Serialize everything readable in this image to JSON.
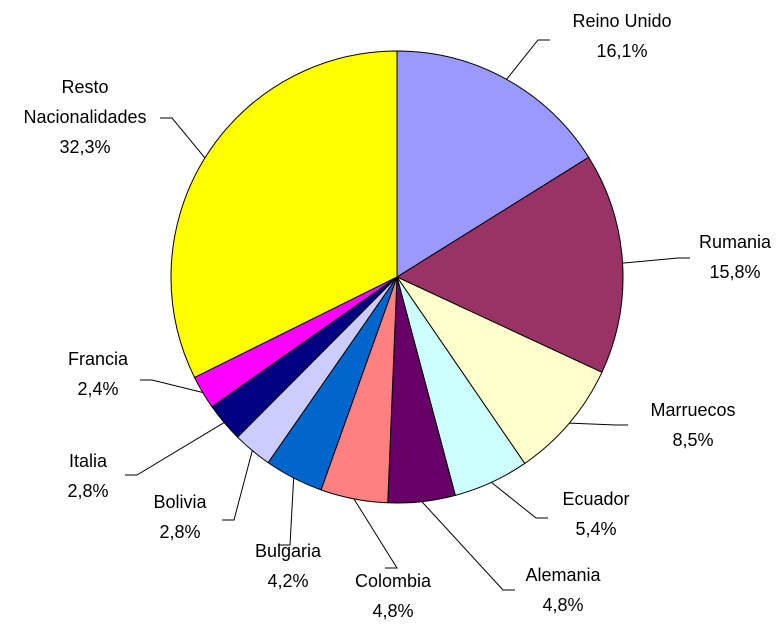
{
  "chart_data": {
    "type": "pie",
    "categories": [
      "Reino Unido",
      "Rumania",
      "Marruecos",
      "Ecuador",
      "Alemania",
      "Colombia",
      "Bulgaria",
      "Bolivia",
      "Italia",
      "Francia",
      "Resto Nacionalidades"
    ],
    "values": [
      16.1,
      15.8,
      8.5,
      5.4,
      4.8,
      4.8,
      4.2,
      2.8,
      2.8,
      2.4,
      32.3
    ],
    "value_labels": [
      "16,1%",
      "15,8%",
      "8,5%",
      "5,4%",
      "4,8%",
      "4,8%",
      "4,2%",
      "2,8%",
      "2,8%",
      "2,4%",
      "32,3%"
    ],
    "colors": [
      "#9999ff",
      "#993366",
      "#ffffcc",
      "#ccffff",
      "#660066",
      "#ff8080",
      "#0066cc",
      "#ccccff",
      "#000080",
      "#ff00ff",
      "#ffff00"
    ]
  }
}
